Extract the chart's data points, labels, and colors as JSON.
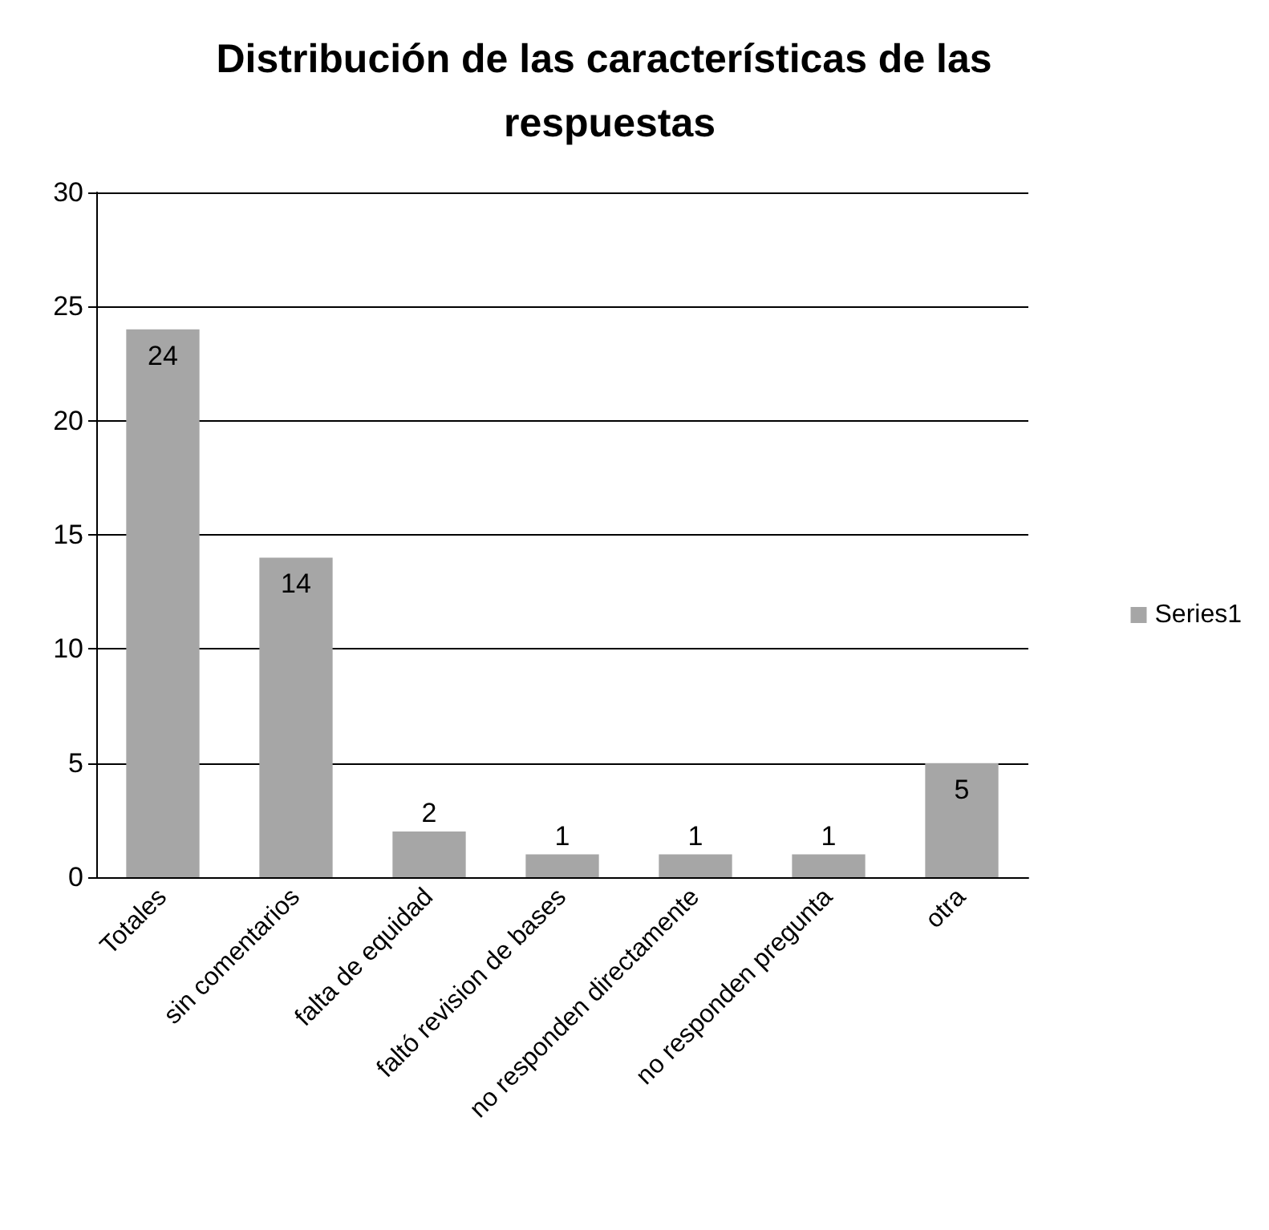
{
  "chart_data": {
    "type": "bar",
    "title": "Distribución de las características de las respuestas",
    "categories": [
      "Totales",
      "sin comentarios",
      "falta de equidad",
      "faltó revision de bases",
      "no responden directamente",
      "no responden pregunta",
      "otra"
    ],
    "series": [
      {
        "name": "Series1",
        "color": "#a6a6a6",
        "values": [
          24,
          14,
          2,
          1,
          1,
          1,
          5
        ]
      }
    ],
    "ylim": [
      0,
      30
    ],
    "yticks": [
      0,
      5,
      10,
      15,
      20,
      25,
      30
    ],
    "grid": "y",
    "legend": "right",
    "data_labels": true
  }
}
